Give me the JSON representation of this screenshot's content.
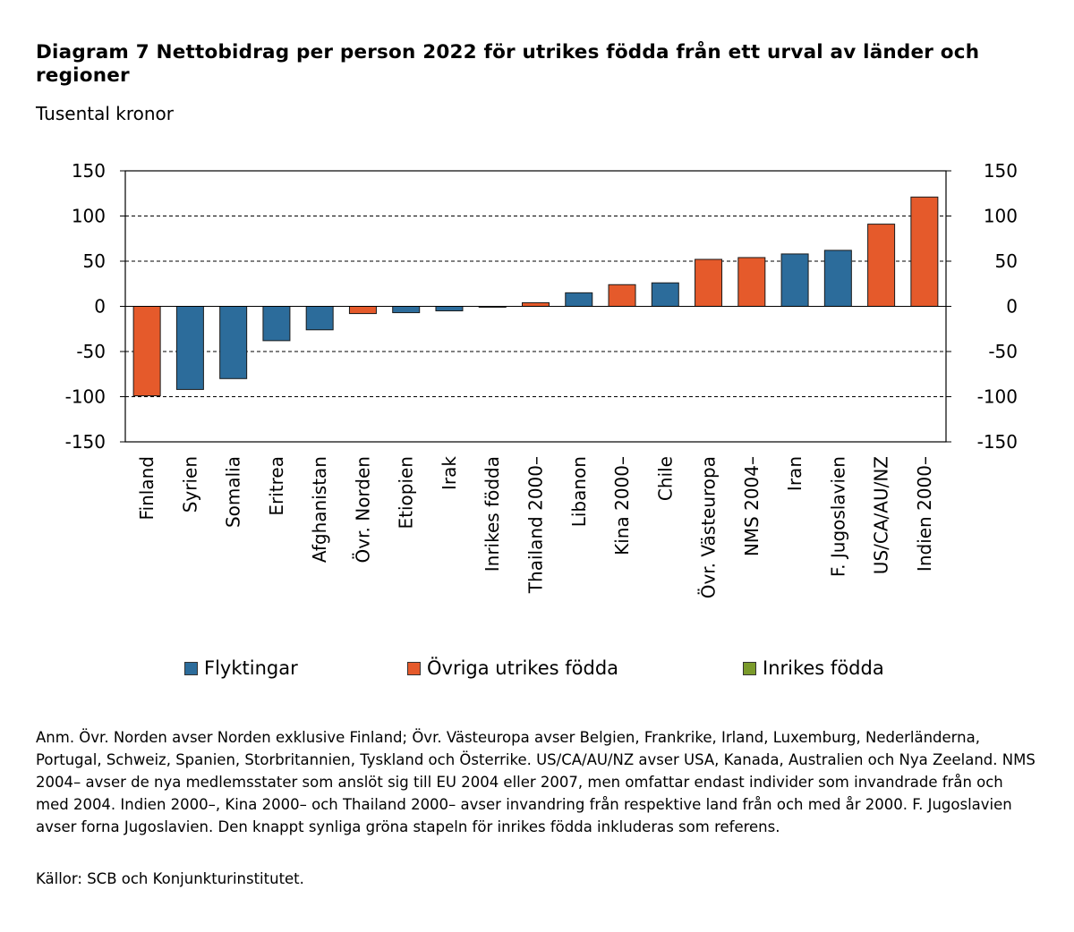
{
  "chart_data": {
    "type": "bar",
    "title": "Diagram 7 Nettobidrag per person 2022 för utrikes födda från ett urval av länder och regioner",
    "subtitle": "Tusental kronor",
    "ylim": [
      -150,
      150
    ],
    "yticks": [
      150,
      100,
      50,
      0,
      -50,
      -100,
      -150
    ],
    "ytick_labels": [
      "150",
      "100",
      "50",
      "0",
      "-50",
      "-100",
      "-150"
    ],
    "gridlines": "dashed, horizontal",
    "categories": [
      "Finland",
      "Syrien",
      "Somalia",
      "Eritrea",
      "Afghanistan",
      "Övr. Norden",
      "Etiopien",
      "Irak",
      "Inrikes födda",
      "Thailand 2000–",
      "Libanon",
      "Kina 2000–",
      "Chile",
      "Övr. Västeuropa",
      "NMS 2004–",
      "Iran",
      "F. Jugoslavien",
      "US/CA/AU/NZ",
      "Indien 2000–"
    ],
    "values": [
      -99,
      -92,
      -80,
      -38,
      -26,
      -8,
      -7,
      -5,
      -1,
      4,
      15,
      24,
      26,
      52,
      54,
      58,
      62,
      91,
      121
    ],
    "groups": [
      "ovriga",
      "flykt",
      "flykt",
      "flykt",
      "flykt",
      "ovriga",
      "flykt",
      "flykt",
      "inrikes",
      "ovriga",
      "flykt",
      "ovriga",
      "flykt",
      "ovriga",
      "ovriga",
      "flykt",
      "flykt",
      "ovriga",
      "ovriga"
    ],
    "series": [
      {
        "key": "flykt",
        "name": "Flyktingar",
        "color": "#2c6c9b"
      },
      {
        "key": "ovriga",
        "name": "Övriga utrikes födda",
        "color": "#e55a2b"
      },
      {
        "key": "inrikes",
        "name": "Inrikes födda",
        "color": "#7a9a2b"
      }
    ],
    "legend_position": "bottom"
  },
  "note": "Anm. Övr. Norden avser Norden exklusive Finland; Övr. Västeuropa avser Belgien, Frankrike, Irland, Luxemburg, Nederländerna, Portugal, Schweiz, Spanien, Storbritannien, Tyskland och Österrike. US/CA/AU/NZ avser USA, Kanada, Australien och Nya Zeeland. NMS 2004– avser de nya medlemsstater som anslöt sig till EU 2004 eller 2007, men omfattar endast individer som invandrade från och med 2004. Indien 2000–, Kina 2000– och Thailand 2000– avser invandring från respektive land från och med år 2000. F. Jugoslavien avser forna Jugoslavien. Den knappt synliga gröna stapeln för inrikes födda inkluderas som referens.",
  "source": "Källor: SCB och Konjunkturinstitutet."
}
